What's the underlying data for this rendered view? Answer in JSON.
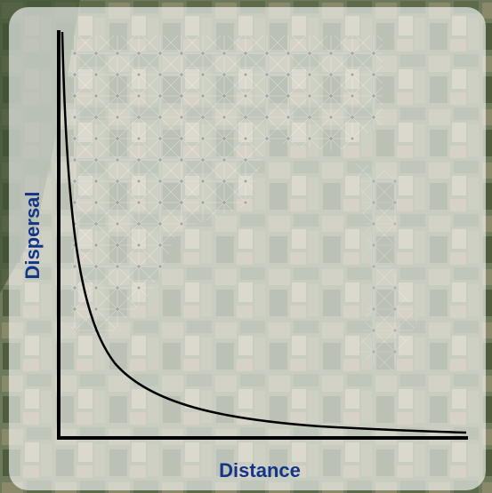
{
  "diagram": {
    "y_axis_label": "Dispersal",
    "x_axis_label": "Distance"
  }
}
